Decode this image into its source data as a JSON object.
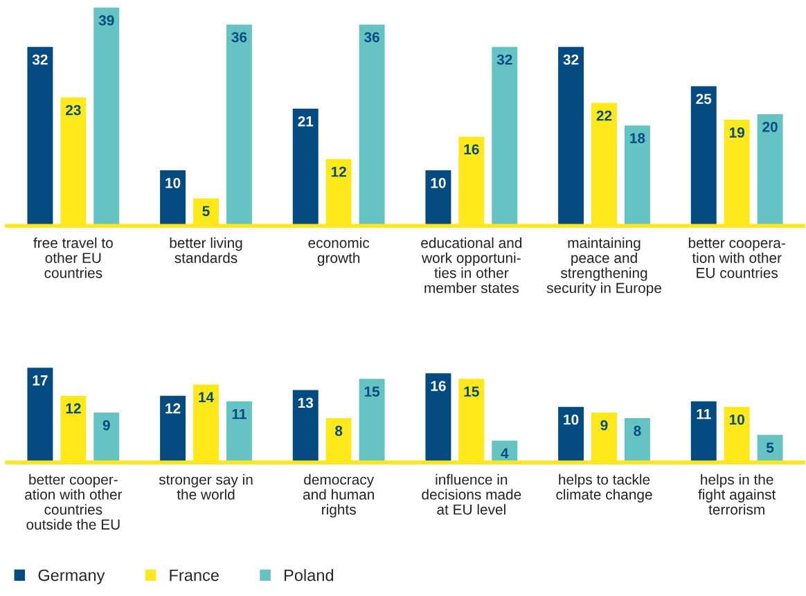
{
  "chart_data": [
    {
      "type": "bar",
      "categories": [
        "free travel to\nother EU\ncountries",
        "better living\nstandards",
        "economic\ngrowth",
        "educational and\nwork opportuni-\nties in other\nmember states",
        "maintaining\npeace and\nstrengthening\nsecurity in Europe",
        "better coopera-\ntion with other\nEU countries"
      ],
      "series": [
        {
          "color": "#034b80",
          "values": [
            32,
            10,
            21,
            10,
            32,
            25
          ]
        },
        {
          "color": "#ffe81a",
          "values": [
            23,
            5,
            12,
            16,
            22,
            19
          ]
        },
        {
          "color": "#66c3c3",
          "values": [
            39,
            36,
            36,
            32,
            18,
            20
          ]
        }
      ],
      "data_labels": true,
      "tick_labels": "x"
    },
    {
      "type": "bar",
      "categories": [
        "better cooper-\nation with other\ncountries\noutside the EU",
        "stronger say in\nthe world",
        "democracy\nand human\nrights",
        "influence in\ndecisions made\nat EU level",
        "helps to tackle\nclimate change",
        "helps in the\nfight against\nterrorism"
      ],
      "series": [
        {
          "name": "Germany",
          "color": "#034b80",
          "values": [
            17,
            12,
            13,
            16,
            10,
            11
          ]
        },
        {
          "name": "France",
          "color": "#ffe81a",
          "values": [
            12,
            14,
            8,
            15,
            9,
            10
          ]
        },
        {
          "name": "Poland",
          "color": "#66c3c3",
          "values": [
            9,
            11,
            15,
            4,
            8,
            5
          ]
        }
      ],
      "data_labels": true,
      "tick_labels": "x",
      "legend": "bottom left"
    }
  ]
}
